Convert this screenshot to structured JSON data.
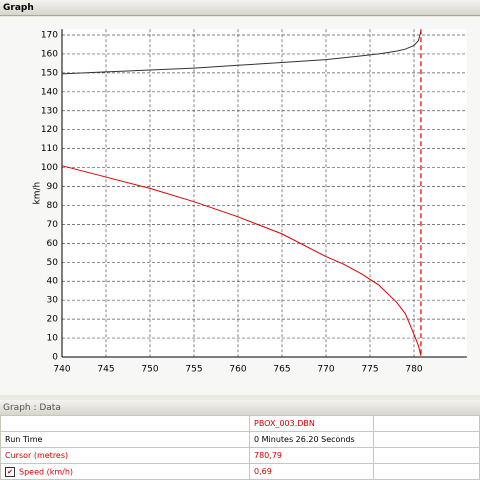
{
  "window": {
    "title": "Graph"
  },
  "chart_data": {
    "type": "line",
    "ylabel": "km/h",
    "x": [
      740,
      745,
      750,
      755,
      760,
      765,
      770,
      772,
      774,
      776,
      778,
      779,
      780,
      780.5,
      780.79
    ],
    "series": [
      {
        "color": "#333333",
        "values": [
          149.5,
          150.5,
          151.5,
          152.5,
          154,
          155.5,
          157,
          158,
          159,
          160,
          161.5,
          162.5,
          164.5,
          167,
          172
        ]
      },
      {
        "color": "#e00000",
        "values": [
          101,
          95,
          89,
          82,
          74,
          65,
          53,
          49,
          44,
          38,
          29,
          23,
          12,
          6,
          0.69
        ]
      }
    ],
    "cursor_x": 780.79,
    "cursor_color": "#e00000",
    "xlim": [
      740,
      786
    ],
    "xticks": [
      740,
      745,
      750,
      755,
      760,
      765,
      770,
      775,
      780
    ],
    "ylim": [
      0,
      173
    ],
    "yticks": [
      0,
      10,
      20,
      30,
      40,
      50,
      60,
      70,
      80,
      90,
      100,
      110,
      120,
      130,
      140,
      150,
      160,
      170
    ],
    "grid": true
  },
  "data_panel": {
    "title": "Graph : Data",
    "file_column": "PBOX_003.DBN",
    "rows": [
      [
        "Run Time",
        "0 Minutes 26.20 Seconds"
      ],
      [
        "Cursor (metres)",
        "780,79"
      ],
      [
        "Speed (km/h)",
        "0,69"
      ]
    ]
  }
}
